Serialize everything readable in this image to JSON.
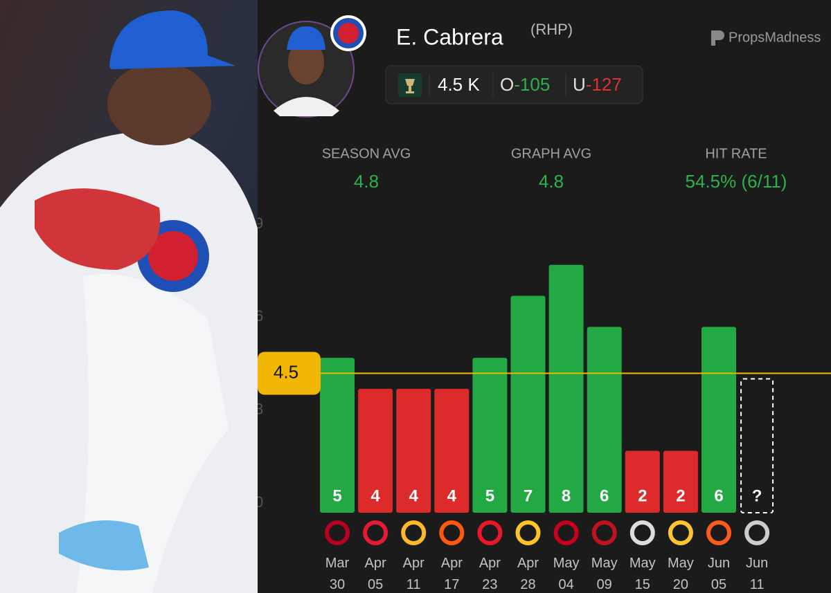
{
  "chart_data": {
    "type": "bar",
    "title": "E. Cabrera",
    "subtitle": "(RHP)",
    "brand": "PropsMadness",
    "line": 4.5,
    "stat": "K",
    "over": "O",
    "over_odds": -105,
    "under": "U",
    "under_odds": -127,
    "stats": [
      {
        "label": "SEASON AVG",
        "value": 4.8
      },
      {
        "label": "GRAPH AVG",
        "value": 4.8
      },
      {
        "label": "HIT RATE",
        "value": 54.5,
        "value_label": "54.5% (6/11)"
      }
    ],
    "categories": [
      "Mar 30",
      "Apr 05",
      "Apr 11",
      "Apr 17",
      "Apr 23",
      "Apr 28",
      "May 04",
      "May 09",
      "May 15",
      "May 20",
      "Jun 05",
      "Jun 11"
    ],
    "values": [
      5,
      4,
      4,
      4,
      5,
      7,
      8,
      6,
      2,
      2,
      6,
      null
    ],
    "value_labels": [
      "5",
      "4",
      "4",
      "4",
      "5",
      "7",
      "8",
      "6",
      "2",
      "2",
      "6",
      "?"
    ],
    "over_color": "#22a943",
    "under_color": "#dd2a2a",
    "line_color": "#f2b705",
    "ylim": [
      0,
      9
    ],
    "yticks": [
      0,
      3,
      6,
      9
    ]
  }
}
